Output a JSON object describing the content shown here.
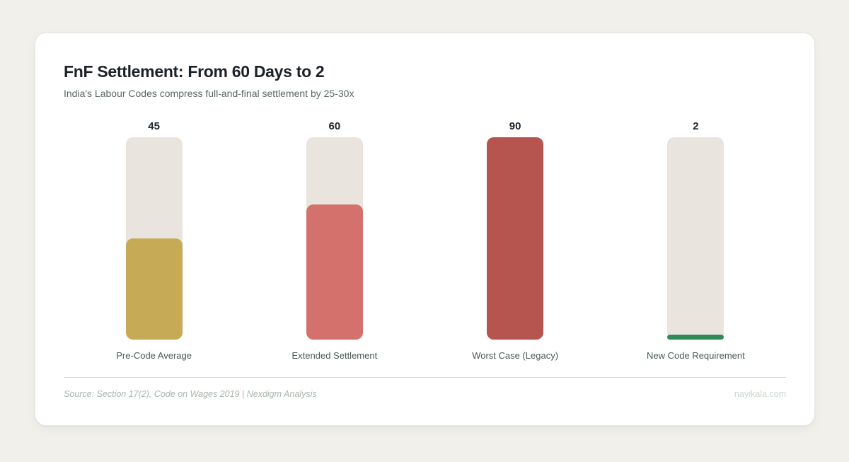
{
  "chart_data": {
    "type": "bar",
    "title": "FnF Settlement: From 60 Days to 2",
    "subtitle": "India's Labour Codes compress full-and-final settlement by 25-30x",
    "categories": [
      "Pre-Code Average",
      "Extended Settlement",
      "Worst Case (Legacy)",
      "New Code Requirement"
    ],
    "values": [
      45,
      60,
      90,
      2
    ],
    "unit": "days",
    "ylim": [
      0,
      90
    ],
    "grid": false,
    "legend": false,
    "orientation": "vertical",
    "bar_colors": [
      "#c7aa56",
      "#d4716c",
      "#b65450",
      "#2e8b57"
    ],
    "track_color": "#e9e5de",
    "value_label_position": "above-bar",
    "category_label_position": "below-bar"
  },
  "footer": {
    "source": "Source: Section 17(2), Code on Wages 2019 | Nexdigm Analysis",
    "watermark": "nayikala.com"
  },
  "colors": {
    "page_background": "#f2f0eb",
    "card_background": "#ffffff",
    "title_text": "#1b2228",
    "subtitle_text": "#5b6763",
    "category_text": "#4c5a52",
    "divider": "#e0dbd0",
    "source_text": "#a7b6ab",
    "watermark_text": "#ccd9cf"
  }
}
